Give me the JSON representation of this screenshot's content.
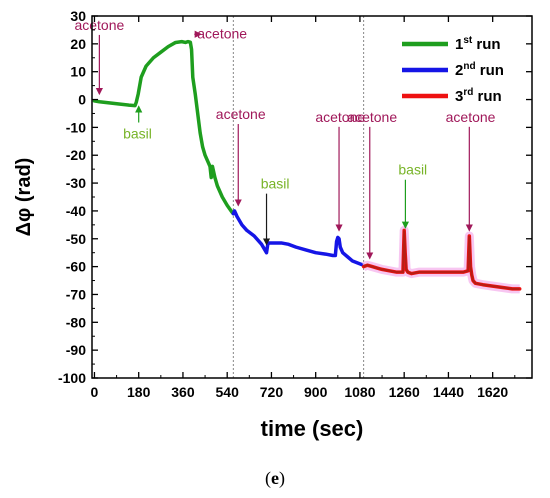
{
  "caption": {
    "open": "(",
    "letter": "e",
    "close": ")"
  },
  "chart_data": {
    "type": "line",
    "xlabel": "time (sec)",
    "ylabel": "Δφ (rad)",
    "xlim": [
      -10,
      1780
    ],
    "ylim": [
      -100,
      30
    ],
    "x_ticks": [
      0,
      180,
      360,
      540,
      720,
      900,
      1080,
      1260,
      1440,
      1620
    ],
    "y_ticks": [
      30,
      20,
      10,
      0,
      -10,
      -20,
      -30,
      -40,
      -50,
      -60,
      -70,
      -80,
      -90,
      -100
    ],
    "grid": false,
    "legend_position": "top-right",
    "legend": [
      {
        "base": "1",
        "sup": "st",
        "word": " run",
        "color": "#1e9e1e"
      },
      {
        "base": "2",
        "sup": "nd",
        "word": " run",
        "color": "#1515e6"
      },
      {
        "base": "3",
        "sup": "rd",
        "word": " run",
        "color": "#ee1111"
      }
    ],
    "dividers": [
      565,
      1095
    ],
    "series": [
      {
        "color": "#1e9e1e",
        "x": [
          0,
          20,
          60,
          100,
          140,
          165,
          170,
          178,
          190,
          210,
          240,
          270,
          300,
          330,
          355,
          370,
          380,
          390,
          395,
          400,
          410,
          420,
          430,
          440,
          450,
          460,
          470,
          475,
          480,
          490,
          500,
          520,
          540,
          560,
          565
        ],
        "y": [
          -0.5,
          -0.8,
          -1.2,
          -1.6,
          -2.0,
          -2.2,
          -1.0,
          2,
          8,
          12,
          15,
          17,
          19,
          20.5,
          20.8,
          20.5,
          20.8,
          20.6,
          18,
          8,
          2,
          -5,
          -12,
          -17,
          -20,
          -22,
          -24,
          -28,
          -24,
          -28,
          -31,
          -35,
          -38,
          -40.5,
          -41
        ]
      },
      {
        "color": "#1515e6",
        "x": [
          565,
          570,
          580,
          600,
          620,
          650,
          680,
          700,
          705,
          710,
          720,
          740,
          760,
          790,
          820,
          860,
          900,
          940,
          970,
          980,
          985,
          990,
          995,
          1000,
          1010,
          1030,
          1050,
          1080,
          1095
        ],
        "y": [
          -41,
          -40,
          -42,
          -45,
          -47,
          -49,
          -52,
          -55,
          -52,
          -51.5,
          -51.5,
          -51.5,
          -51.5,
          -52,
          -53,
          -54,
          -55,
          -55.5,
          -56,
          -56,
          -51,
          -49.5,
          -50,
          -53,
          -55,
          -56.5,
          -58,
          -59,
          -59.5
        ]
      },
      {
        "color": "#ee1111",
        "x": [
          1095,
          1110,
          1130,
          1150,
          1170,
          1200,
          1230,
          1255,
          1260,
          1264,
          1268,
          1275,
          1290,
          1320,
          1350,
          1380,
          1410,
          1440,
          1470,
          1500,
          1520,
          1525,
          1530,
          1535,
          1540,
          1550,
          1580,
          1620,
          1660,
          1700,
          1730
        ],
        "y": [
          -60,
          -59.5,
          -60,
          -60.5,
          -61,
          -61.5,
          -62,
          -62,
          -47,
          -55,
          -61,
          -62,
          -62.5,
          -62,
          -62,
          -62,
          -62,
          -62,
          -62,
          -62,
          -61.5,
          -49,
          -60,
          -63,
          -65,
          -66,
          -66.5,
          -67,
          -67.5,
          -68,
          -68
        ]
      }
    ],
    "annotations": [
      {
        "text": "acetone",
        "x": 20,
        "y": 25,
        "color": "#a0185a",
        "arrow": "down",
        "tip_x": 20,
        "tip_y": 2
      },
      {
        "text": "basil",
        "x": 175,
        "y": -14,
        "color": "#78b428",
        "arrow": "up",
        "tip_x": 180,
        "tip_y": -2.5
      },
      {
        "text": "acetone",
        "x": 520,
        "y": 22,
        "color": "#a0185a",
        "arrow": "left",
        "tip_x": 432,
        "tip_y": 22
      },
      {
        "text": "acetone",
        "x": 595,
        "y": -7,
        "color": "#a0185a",
        "arrow": "down",
        "tip_x": 585,
        "tip_y": -38
      },
      {
        "text": "basil",
        "x": 735,
        "y": -32,
        "color": "#78b428",
        "arrow": "down",
        "tip_x": 700,
        "tip_y": -52
      },
      {
        "text": "acetone",
        "x": 1000,
        "y": -8,
        "color": "#a0185a",
        "arrow": "down",
        "tip_x": 995,
        "tip_y": -47
      },
      {
        "text": "acetone",
        "x": 1130,
        "y": -8,
        "color": "#a0185a",
        "arrow": "down",
        "tip_x": 1120,
        "tip_y": -57
      },
      {
        "text": "basil",
        "x": 1295,
        "y": -27,
        "color": "#78b428",
        "arrow": "down",
        "tip_x": 1265,
        "tip_y": -46
      },
      {
        "text": "acetone",
        "x": 1530,
        "y": -8,
        "color": "#a0185a",
        "arrow": "down",
        "tip_x": 1525,
        "tip_y": -47
      }
    ]
  }
}
